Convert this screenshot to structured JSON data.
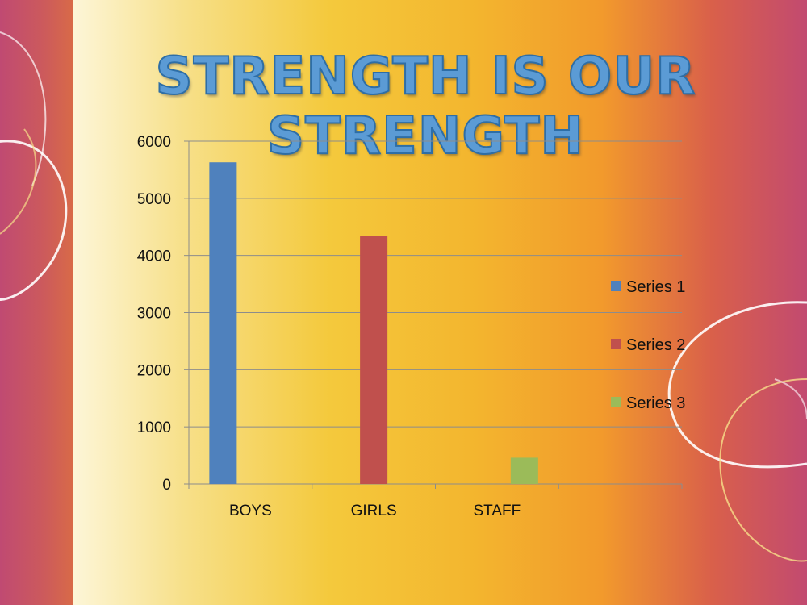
{
  "slide": {
    "title": "STRENGTH IS OUR STRENGTH"
  },
  "chart_data": {
    "type": "bar",
    "categories": [
      "BOYS",
      "GIRLS",
      "STAFF"
    ],
    "series": [
      {
        "name": "Series 1",
        "values": [
          5630,
          null,
          null
        ],
        "color": "#4f81bd"
      },
      {
        "name": "Series 2",
        "values": [
          null,
          4340,
          null
        ],
        "color": "#c0504d"
      },
      {
        "name": "Series 3",
        "values": [
          null,
          null,
          460
        ],
        "color": "#9bbb59"
      }
    ],
    "ylim": [
      0,
      6000
    ],
    "yticks": [
      0,
      1000,
      2000,
      3000,
      4000,
      5000,
      6000
    ],
    "grid": true,
    "legend_position": "right",
    "xlabel": "",
    "ylabel": ""
  }
}
